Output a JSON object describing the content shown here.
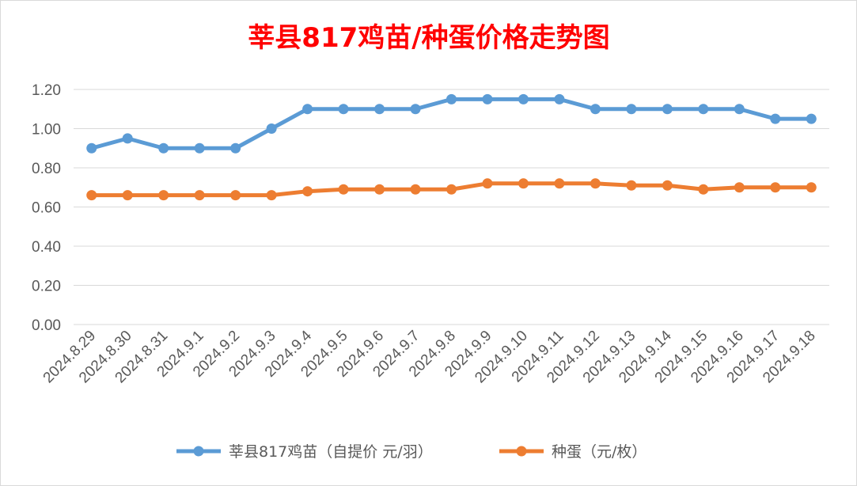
{
  "chart_data": {
    "type": "line",
    "title": "莘县817鸡苗/种蛋价格走势图",
    "xlabel": "",
    "ylabel": "",
    "ylim": [
      0,
      1.2
    ],
    "yticks": [
      "0.00",
      "0.20",
      "0.40",
      "0.60",
      "0.80",
      "1.00",
      "1.20"
    ],
    "grid": true,
    "legend_position": "bottom",
    "categories": [
      "2024.8.29",
      "2024.8.30",
      "2024.8.31",
      "2024.9.1",
      "2024.9.2",
      "2024.9.3",
      "2024.9.4",
      "2024.9.5",
      "2024.9.6",
      "2024.9.7",
      "2024.9.8",
      "2024.9.9",
      "2024.9.10",
      "2024.9.11",
      "2024.9.12",
      "2024.9.13",
      "2024.9.14",
      "2024.9.15",
      "2024.9.16",
      "2024.9.17",
      "2024.9.18"
    ],
    "series": [
      {
        "name": "莘县817鸡苗（自提价 元/羽）",
        "color": "#5b9bd5",
        "values": [
          0.9,
          0.95,
          0.9,
          0.9,
          0.9,
          1.0,
          1.1,
          1.1,
          1.1,
          1.1,
          1.15,
          1.15,
          1.15,
          1.15,
          1.1,
          1.1,
          1.1,
          1.1,
          1.1,
          1.05,
          1.05
        ]
      },
      {
        "name": "种蛋（元/枚）",
        "color": "#ed7d31",
        "values": [
          0.66,
          0.66,
          0.66,
          0.66,
          0.66,
          0.66,
          0.68,
          0.69,
          0.69,
          0.69,
          0.69,
          0.72,
          0.72,
          0.72,
          0.72,
          0.71,
          0.71,
          0.69,
          0.7,
          0.7,
          0.7
        ]
      }
    ]
  }
}
